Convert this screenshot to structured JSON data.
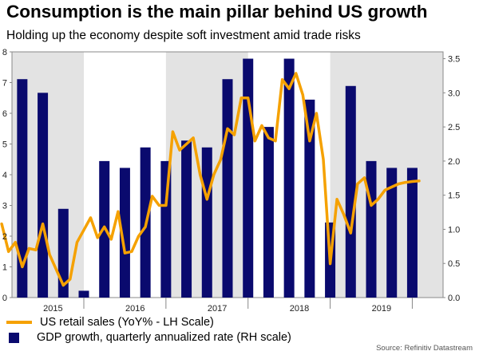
{
  "header": {
    "title": "Consumption is the main pillar behind US growth",
    "subtitle": "Holding up the economy despite soft investment amid trade risks"
  },
  "colors": {
    "line": "#F5A100",
    "bar": "#0A0A6E",
    "shade": "#E3E3E3"
  },
  "legend": {
    "line_label": "US retail sales (YoY% - LH Scale)",
    "bar_label": "GDP growth, quarterly annualized rate (RH scale)"
  },
  "source": "Source: Refinitiv Datastream",
  "chart_data": [
    {
      "type": "line",
      "series": [
        {
          "name": "US retail sales (YoY% - LH Scale)",
          "axis": "left",
          "x": [
            2014.5,
            2014.583,
            2014.667,
            2014.75,
            2014.833,
            2014.917,
            2015.0,
            2015.083,
            2015.167,
            2015.25,
            2015.333,
            2015.417,
            2015.5,
            2015.583,
            2015.667,
            2015.75,
            2015.833,
            2015.917,
            2016.0,
            2016.083,
            2016.167,
            2016.25,
            2016.333,
            2016.417,
            2016.5,
            2016.583,
            2016.667,
            2016.75,
            2016.833,
            2016.917,
            2017.0,
            2017.083,
            2017.167,
            2017.25,
            2017.333,
            2017.417,
            2017.5,
            2017.583,
            2017.667,
            2017.75,
            2017.833,
            2017.917,
            2018.0,
            2018.083,
            2018.167,
            2018.25,
            2018.333,
            2018.417,
            2018.5,
            2018.583,
            2018.667,
            2018.75,
            2018.833,
            2018.917,
            2019.0,
            2019.083,
            2019.167,
            2019.25,
            2019.333,
            2019.417,
            2019.5,
            2019.583
          ],
          "values": [
            2.4,
            1.5,
            1.8,
            1.0,
            1.6,
            1.55,
            2.4,
            1.4,
            0.9,
            0.4,
            0.6,
            1.8,
            2.2,
            2.6,
            1.95,
            2.3,
            1.9,
            2.8,
            1.45,
            1.5,
            2.0,
            2.3,
            3.3,
            3.0,
            3.0,
            5.4,
            4.8,
            5.0,
            5.2,
            4.0,
            3.2,
            4.0,
            4.5,
            5.5,
            5.3,
            6.5,
            6.5,
            5.1,
            5.6,
            5.2,
            5.1,
            7.1,
            6.8,
            7.3,
            6.6,
            5.1,
            6.0,
            4.5,
            1.1,
            3.2,
            2.7,
            2.1,
            3.7,
            3.9,
            3.0,
            3.2,
            3.5,
            3.6,
            3.7,
            3.75,
            3.78,
            3.8
          ],
          "color": "#F5A100"
        }
      ],
      "ylim": [
        0,
        8
      ],
      "yticks": [
        0,
        1,
        2,
        3,
        4,
        5,
        6,
        7,
        8
      ]
    },
    {
      "type": "bar",
      "categories": [
        "2014Q4",
        "2015Q1",
        "2015Q2",
        "2015Q3",
        "2015Q4",
        "2016Q1",
        "2016Q2",
        "2016Q3",
        "2016Q4",
        "2017Q1",
        "2017Q2",
        "2017Q3",
        "2017Q4",
        "2018Q1",
        "2018Q2",
        "2018Q3",
        "2018Q4",
        "2019Q1",
        "2019Q2",
        "2019Q3"
      ],
      "x": [
        2014.75,
        2015.0,
        2015.25,
        2015.5,
        2015.75,
        2016.0,
        2016.25,
        2016.5,
        2016.75,
        2017.0,
        2017.25,
        2017.5,
        2017.75,
        2018.0,
        2018.25,
        2018.5,
        2018.75,
        2019.0,
        2019.25,
        2019.5
      ],
      "series": [
        {
          "name": "GDP growth, quarterly annualized rate (RH scale)",
          "axis": "right",
          "values": [
            3.2,
            3.0,
            1.3,
            0.1,
            2.0,
            1.9,
            2.2,
            2.0,
            2.3,
            2.2,
            3.2,
            3.5,
            2.5,
            3.5,
            2.9,
            1.1,
            3.1,
            2.0,
            1.9,
            1.9
          ],
          "color": "#0A0A6E"
        }
      ],
      "ylim": [
        0,
        3.6
      ],
      "yticks": [
        0.0,
        0.5,
        1.0,
        1.5,
        2.0,
        2.5,
        3.0,
        3.5
      ]
    }
  ],
  "axes": {
    "x_range": [
      2014.625,
      2019.875
    ],
    "x_tick_labels": [
      "2015",
      "2016",
      "2017",
      "2018",
      "2019"
    ],
    "x_tick_positions": [
      2015.125,
      2016.125,
      2017.125,
      2018.125,
      2019.125
    ],
    "year_boundaries": [
      2015.5,
      2016.5,
      2017.5,
      2018.5,
      2019.5
    ],
    "shaded_year_spans": [
      [
        2014.625,
        2015.5
      ],
      [
        2016.5,
        2017.5
      ],
      [
        2018.5,
        2019.875
      ]
    ],
    "left_tick_labels": [
      "0",
      "1",
      "2",
      "3",
      "4",
      "5",
      "6",
      "7",
      "8"
    ],
    "right_tick_labels": [
      "0.0",
      "0.5",
      "1.0",
      "1.5",
      "2.0",
      "2.5",
      "3.0",
      "3.5"
    ]
  }
}
